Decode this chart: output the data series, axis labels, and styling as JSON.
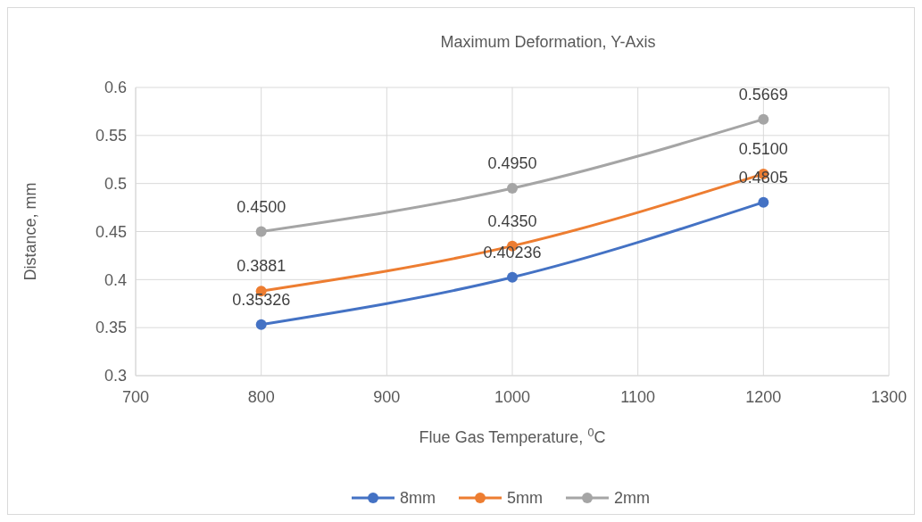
{
  "chart_data": {
    "type": "line",
    "title": "Maximum Deformation, Y-Axis",
    "xlabel": "Flue Gas Temperature, $^{0}$C",
    "ylabel": "Distance, mm",
    "x": [
      800,
      1000,
      1200
    ],
    "series": [
      {
        "name": "8mm",
        "color": "#4472c4",
        "values": [
          0.35326,
          0.40236,
          0.4805
        ],
        "value_labels": [
          "0.35326",
          "0.40236",
          "0.4805"
        ]
      },
      {
        "name": "5mm",
        "color": "#ed7d31",
        "values": [
          0.3881,
          0.435,
          0.51
        ],
        "value_labels": [
          "0.3881",
          "0.4350",
          "0.5100"
        ]
      },
      {
        "name": "2mm",
        "color": "#a5a5a5",
        "values": [
          0.45,
          0.495,
          0.5669
        ],
        "value_labels": [
          "0.4500",
          "0.4950",
          "0.5669"
        ]
      }
    ],
    "xlim": [
      700,
      1300
    ],
    "xticks": [
      700,
      800,
      900,
      1000,
      1100,
      1200,
      1300
    ],
    "ylim": [
      0.3,
      0.6
    ],
    "yticks": [
      0.3,
      0.35,
      0.4,
      0.45,
      0.5,
      0.55,
      0.6
    ],
    "grid": true,
    "legend": "bottom",
    "marker": "circle",
    "line_style": "solid"
  }
}
